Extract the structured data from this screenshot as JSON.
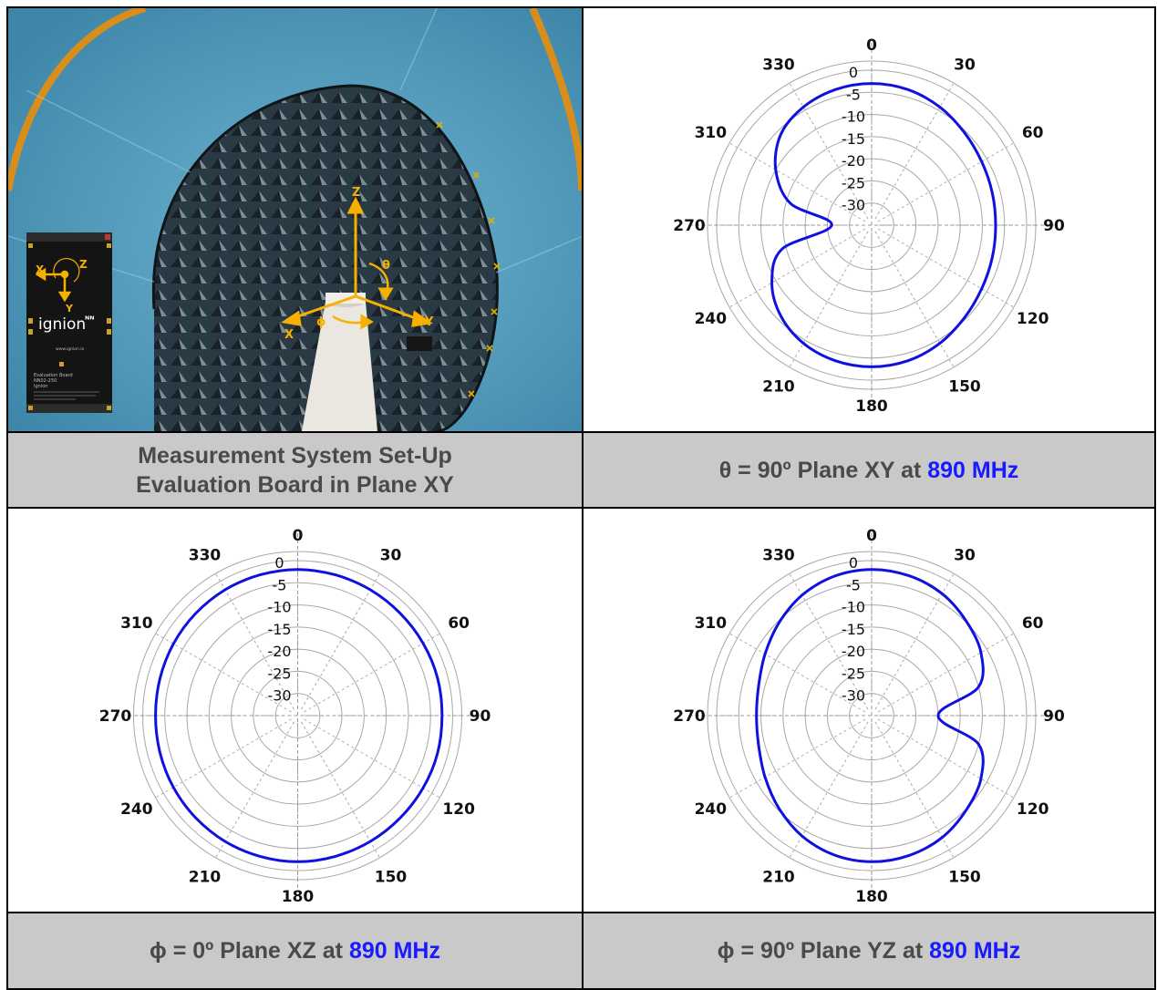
{
  "photo": {
    "axis_labels": {
      "z": "Z",
      "x": "X",
      "y": "Y",
      "theta": "θ",
      "phi": "ϕ"
    },
    "board": {
      "brand": "ignion",
      "brand_mark": "ᴺᴺ",
      "website": "www.ignion.io",
      "title": "Evaluation Board",
      "model": "NN02-250",
      "maker": "Ignion",
      "axis_labels": {
        "x": "X",
        "y": "Y",
        "z": "Z"
      }
    },
    "colors": {
      "chamber": "#5aa6c8",
      "absorber": "#26343c",
      "axes": "#f5b000",
      "frame": "#d98e1c"
    }
  },
  "captions": {
    "setup": {
      "line1": "Measurement System Set-Up",
      "line2": "Evaluation Board in Plane XY"
    },
    "xy": {
      "prefix": "θ = 90º Plane XY at ",
      "freq": "890 MHz"
    },
    "xz": {
      "prefix": "ϕ = 0º Plane XZ at ",
      "freq": "890 MHz"
    },
    "yz": {
      "prefix": "ϕ = 90º Plane YZ at ",
      "freq": "890 MHz"
    }
  },
  "chart_data": [
    {
      "type": "polar",
      "title": "θ = 90º Plane XY at 890 MHz",
      "angle_ticks": [
        "0",
        "30",
        "60",
        "90",
        "120",
        "150",
        "180",
        "210",
        "240",
        "270",
        "310",
        "330"
      ],
      "radial_ticks": [
        "0",
        "-5",
        "-10",
        "-15",
        "-20",
        "-25",
        "-30"
      ],
      "rlim": [
        -35,
        0
      ],
      "series_color": "#1010e0",
      "series": [
        {
          "theta_deg": [
            0,
            15,
            30,
            45,
            60,
            75,
            90,
            105,
            120,
            135,
            150,
            165,
            180,
            195,
            210,
            225,
            240,
            255,
            270,
            285,
            300,
            315,
            330,
            345
          ],
          "gain_db": [
            -3,
            -3.3,
            -4.2,
            -5.4,
            -6.3,
            -6.8,
            -7,
            -6.8,
            -6.3,
            -5.4,
            -4.2,
            -3.3,
            -3,
            -3.3,
            -4.2,
            -6,
            -9,
            -14,
            -26,
            -16,
            -10,
            -6,
            -4.2,
            -3.3
          ]
        }
      ]
    },
    {
      "type": "polar",
      "title": "ϕ = 0º Plane XZ at 890 MHz",
      "angle_ticks": [
        "0",
        "30",
        "60",
        "90",
        "120",
        "150",
        "180",
        "210",
        "240",
        "270",
        "310",
        "330"
      ],
      "radial_ticks": [
        "0",
        "-5",
        "-10",
        "-15",
        "-20",
        "-25",
        "-30"
      ],
      "rlim": [
        -35,
        0
      ],
      "series_color": "#1010e0",
      "series": [
        {
          "theta_deg": [
            0,
            15,
            30,
            45,
            60,
            75,
            90,
            105,
            120,
            135,
            150,
            165,
            180,
            195,
            210,
            225,
            240,
            255,
            270,
            285,
            300,
            315,
            330,
            345
          ],
          "gain_db": [
            -2,
            -2.1,
            -2.2,
            -2.3,
            -2.3,
            -2.3,
            -2.4,
            -2.3,
            -2.3,
            -2.3,
            -2.2,
            -2.1,
            -2,
            -2.1,
            -2.2,
            -2.4,
            -2.6,
            -2.8,
            -2.9,
            -2.8,
            -2.6,
            -2.4,
            -2.2,
            -2.1
          ]
        }
      ]
    },
    {
      "type": "polar",
      "title": "ϕ = 90º Plane YZ at 890 MHz",
      "angle_ticks": [
        "0",
        "30",
        "60",
        "90",
        "120",
        "150",
        "180",
        "210",
        "240",
        "270",
        "310",
        "330"
      ],
      "radial_ticks": [
        "0",
        "-5",
        "-10",
        "-15",
        "-20",
        "-25",
        "-30"
      ],
      "rlim": [
        -35,
        0
      ],
      "series_color": "#1010e0",
      "series": [
        {
          "theta_deg": [
            0,
            15,
            30,
            45,
            60,
            75,
            90,
            105,
            120,
            135,
            150,
            165,
            180,
            195,
            210,
            225,
            240,
            255,
            270,
            285,
            300,
            315,
            330,
            345
          ],
          "gain_db": [
            -2,
            -2.3,
            -3.2,
            -4.8,
            -6.5,
            -10,
            -20,
            -10,
            -6.5,
            -4.8,
            -3.2,
            -2.3,
            -2,
            -2.4,
            -3.6,
            -5.4,
            -7.2,
            -8.6,
            -9,
            -8.6,
            -7.2,
            -5.4,
            -3.6,
            -2.4
          ]
        }
      ]
    }
  ]
}
